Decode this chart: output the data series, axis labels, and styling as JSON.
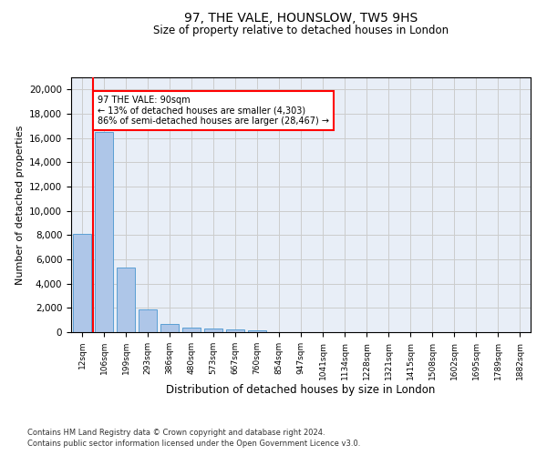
{
  "title": "97, THE VALE, HOUNSLOW, TW5 9HS",
  "subtitle": "Size of property relative to detached houses in London",
  "xlabel": "Distribution of detached houses by size in London",
  "ylabel": "Number of detached properties",
  "footnote1": "Contains HM Land Registry data © Crown copyright and database right 2024.",
  "footnote2": "Contains public sector information licensed under the Open Government Licence v3.0.",
  "annotation_title": "97 THE VALE: 90sqm",
  "annotation_line2": "← 13% of detached houses are smaller (4,303)",
  "annotation_line3": "86% of semi-detached houses are larger (28,467) →",
  "bar_color": "#aec6e8",
  "bar_edge_color": "#5a9fd4",
  "vline_color": "red",
  "categories": [
    "12sqm",
    "106sqm",
    "199sqm",
    "293sqm",
    "386sqm",
    "480sqm",
    "573sqm",
    "667sqm",
    "760sqm",
    "854sqm",
    "947sqm",
    "1041sqm",
    "1134sqm",
    "1228sqm",
    "1321sqm",
    "1415sqm",
    "1508sqm",
    "1602sqm",
    "1695sqm",
    "1789sqm",
    "1882sqm"
  ],
  "values": [
    8100,
    16500,
    5300,
    1850,
    700,
    380,
    290,
    200,
    175,
    0,
    0,
    0,
    0,
    0,
    0,
    0,
    0,
    0,
    0,
    0,
    0
  ],
  "ylim": [
    0,
    21000
  ],
  "yticks": [
    0,
    2000,
    4000,
    6000,
    8000,
    10000,
    12000,
    14000,
    16000,
    18000,
    20000
  ],
  "grid_color": "#cccccc",
  "background_color": "#e8eef7"
}
